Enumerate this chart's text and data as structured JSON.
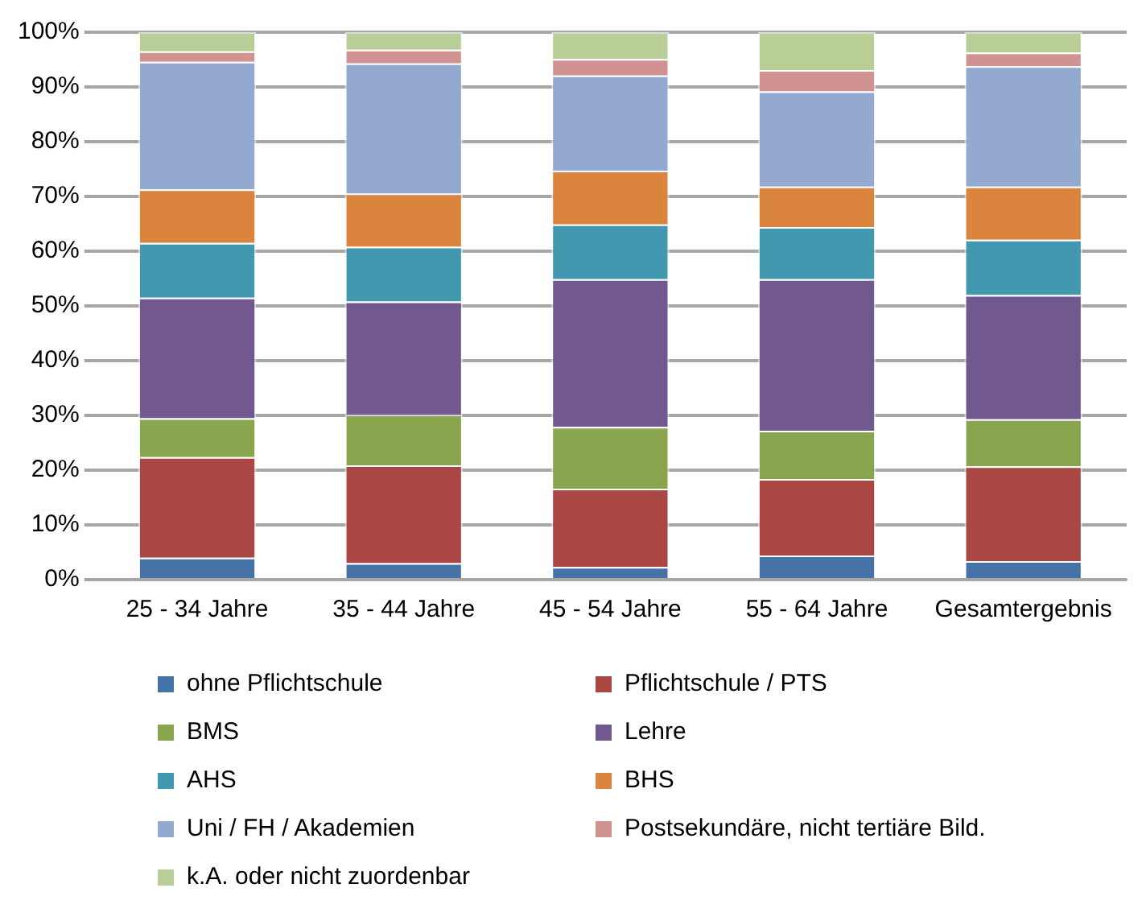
{
  "chart_data": {
    "type": "bar",
    "stacked": true,
    "categories": [
      "25 - 34 Jahre",
      "35 - 44 Jahre",
      "45 - 54 Jahre",
      "55 - 64 Jahre",
      "Gesamtergebnis"
    ],
    "series": [
      {
        "name": "ohne Pflichtschule",
        "color": "#4572a7",
        "values": [
          4.0,
          3.0,
          2.3,
          4.4,
          3.4
        ]
      },
      {
        "name": "Pflichtschule / PTS",
        "color": "#aa4643",
        "values": [
          18.4,
          17.9,
          14.3,
          14.0,
          17.3
        ]
      },
      {
        "name": "BMS",
        "color": "#89a54e",
        "values": [
          7.1,
          9.2,
          11.3,
          8.8,
          8.6
        ]
      },
      {
        "name": "Lehre",
        "color": "#71588f",
        "values": [
          22.0,
          20.7,
          27.0,
          27.7,
          22.7
        ]
      },
      {
        "name": "AHS",
        "color": "#4198af",
        "values": [
          10.0,
          10.0,
          10.0,
          9.5,
          10.1
        ]
      },
      {
        "name": "BHS",
        "color": "#db843d",
        "values": [
          9.8,
          9.7,
          9.8,
          7.4,
          9.7
        ]
      },
      {
        "name": "Uni / FH / Akademien",
        "color": "#93a9cf",
        "values": [
          23.3,
          23.8,
          17.4,
          17.4,
          22.0
        ]
      },
      {
        "name": "Postsekundäre, nicht tertiäre Bild.",
        "color": "#d19392",
        "values": [
          1.9,
          2.5,
          3.0,
          3.9,
          2.5
        ]
      },
      {
        "name": "k.A. oder nicht zuordenbar",
        "color": "#b9cd96",
        "values": [
          3.5,
          3.2,
          4.9,
          6.9,
          3.7
        ]
      }
    ],
    "ylim": [
      0,
      100
    ],
    "yticks": [
      {
        "value": 0,
        "label": "0%"
      },
      {
        "value": 10,
        "label": "10%"
      },
      {
        "value": 20,
        "label": "20%"
      },
      {
        "value": 30,
        "label": "30%"
      },
      {
        "value": 40,
        "label": "40%"
      },
      {
        "value": 50,
        "label": "50%"
      },
      {
        "value": 60,
        "label": "60%"
      },
      {
        "value": 70,
        "label": "70%"
      },
      {
        "value": 80,
        "label": "80%"
      },
      {
        "value": 90,
        "label": "90%"
      },
      {
        "value": 100,
        "label": "100%"
      }
    ],
    "grid": "y",
    "legend": "bottom"
  }
}
